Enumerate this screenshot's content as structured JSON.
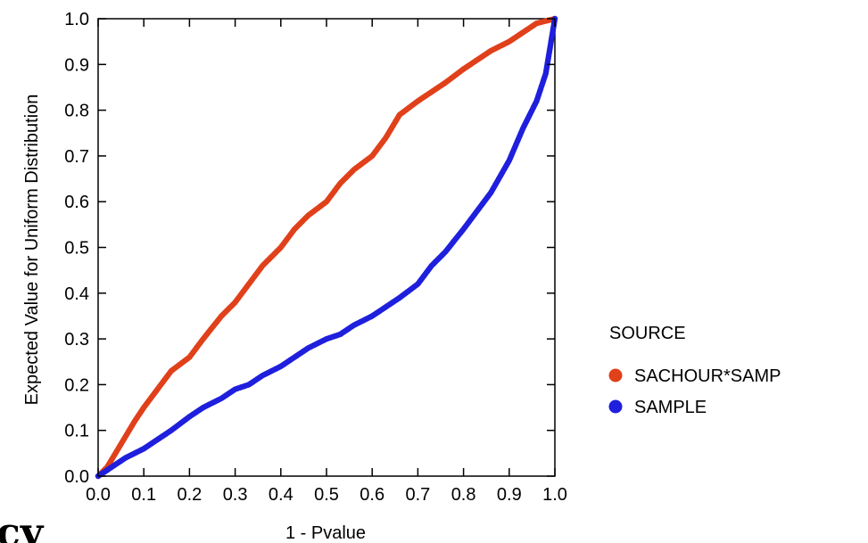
{
  "chart_data": {
    "type": "scatter",
    "title": "",
    "xlabel": "1 - Pvalue",
    "ylabel": "Expected Value for Uniform Distribution",
    "xlim": [
      0.0,
      1.0
    ],
    "ylim": [
      0.0,
      1.0
    ],
    "grid": false,
    "x_ticks": [
      "0.0",
      "0.1",
      "0.2",
      "0.3",
      "0.4",
      "0.5",
      "0.6",
      "0.7",
      "0.8",
      "0.9",
      "1.0"
    ],
    "y_ticks": [
      "0.0",
      "0.1",
      "0.2",
      "0.3",
      "0.4",
      "0.5",
      "0.6",
      "0.7",
      "0.8",
      "0.9",
      "1.0"
    ],
    "legend": {
      "title": "SOURCE",
      "placement": "right"
    },
    "series": [
      {
        "name": "SACHOUR*SAMP",
        "color": "#e0401a",
        "points": [
          [
            0.0,
            0.0
          ],
          [
            0.02,
            0.02
          ],
          [
            0.05,
            0.07
          ],
          [
            0.08,
            0.12
          ],
          [
            0.1,
            0.15
          ],
          [
            0.13,
            0.19
          ],
          [
            0.16,
            0.23
          ],
          [
            0.2,
            0.26
          ],
          [
            0.23,
            0.3
          ],
          [
            0.27,
            0.35
          ],
          [
            0.3,
            0.38
          ],
          [
            0.33,
            0.42
          ],
          [
            0.36,
            0.46
          ],
          [
            0.4,
            0.5
          ],
          [
            0.43,
            0.54
          ],
          [
            0.46,
            0.57
          ],
          [
            0.5,
            0.6
          ],
          [
            0.53,
            0.64
          ],
          [
            0.56,
            0.67
          ],
          [
            0.6,
            0.7
          ],
          [
            0.63,
            0.74
          ],
          [
            0.66,
            0.79
          ],
          [
            0.7,
            0.82
          ],
          [
            0.73,
            0.84
          ],
          [
            0.76,
            0.86
          ],
          [
            0.8,
            0.89
          ],
          [
            0.83,
            0.91
          ],
          [
            0.86,
            0.93
          ],
          [
            0.9,
            0.95
          ],
          [
            0.93,
            0.97
          ],
          [
            0.96,
            0.99
          ],
          [
            1.0,
            1.0
          ]
        ]
      },
      {
        "name": "SAMPLE",
        "color": "#1f1fdd",
        "points": [
          [
            0.0,
            0.0
          ],
          [
            0.03,
            0.02
          ],
          [
            0.06,
            0.04
          ],
          [
            0.1,
            0.06
          ],
          [
            0.13,
            0.08
          ],
          [
            0.16,
            0.1
          ],
          [
            0.2,
            0.13
          ],
          [
            0.23,
            0.15
          ],
          [
            0.27,
            0.17
          ],
          [
            0.3,
            0.19
          ],
          [
            0.33,
            0.2
          ],
          [
            0.36,
            0.22
          ],
          [
            0.4,
            0.24
          ],
          [
            0.43,
            0.26
          ],
          [
            0.46,
            0.28
          ],
          [
            0.5,
            0.3
          ],
          [
            0.53,
            0.31
          ],
          [
            0.56,
            0.33
          ],
          [
            0.6,
            0.35
          ],
          [
            0.63,
            0.37
          ],
          [
            0.66,
            0.39
          ],
          [
            0.7,
            0.42
          ],
          [
            0.73,
            0.46
          ],
          [
            0.76,
            0.49
          ],
          [
            0.8,
            0.54
          ],
          [
            0.83,
            0.58
          ],
          [
            0.86,
            0.62
          ],
          [
            0.9,
            0.69
          ],
          [
            0.93,
            0.76
          ],
          [
            0.96,
            0.82
          ],
          [
            0.98,
            0.88
          ],
          [
            0.99,
            0.94
          ],
          [
            1.0,
            1.0
          ]
        ]
      }
    ]
  },
  "stray_text": "cy"
}
